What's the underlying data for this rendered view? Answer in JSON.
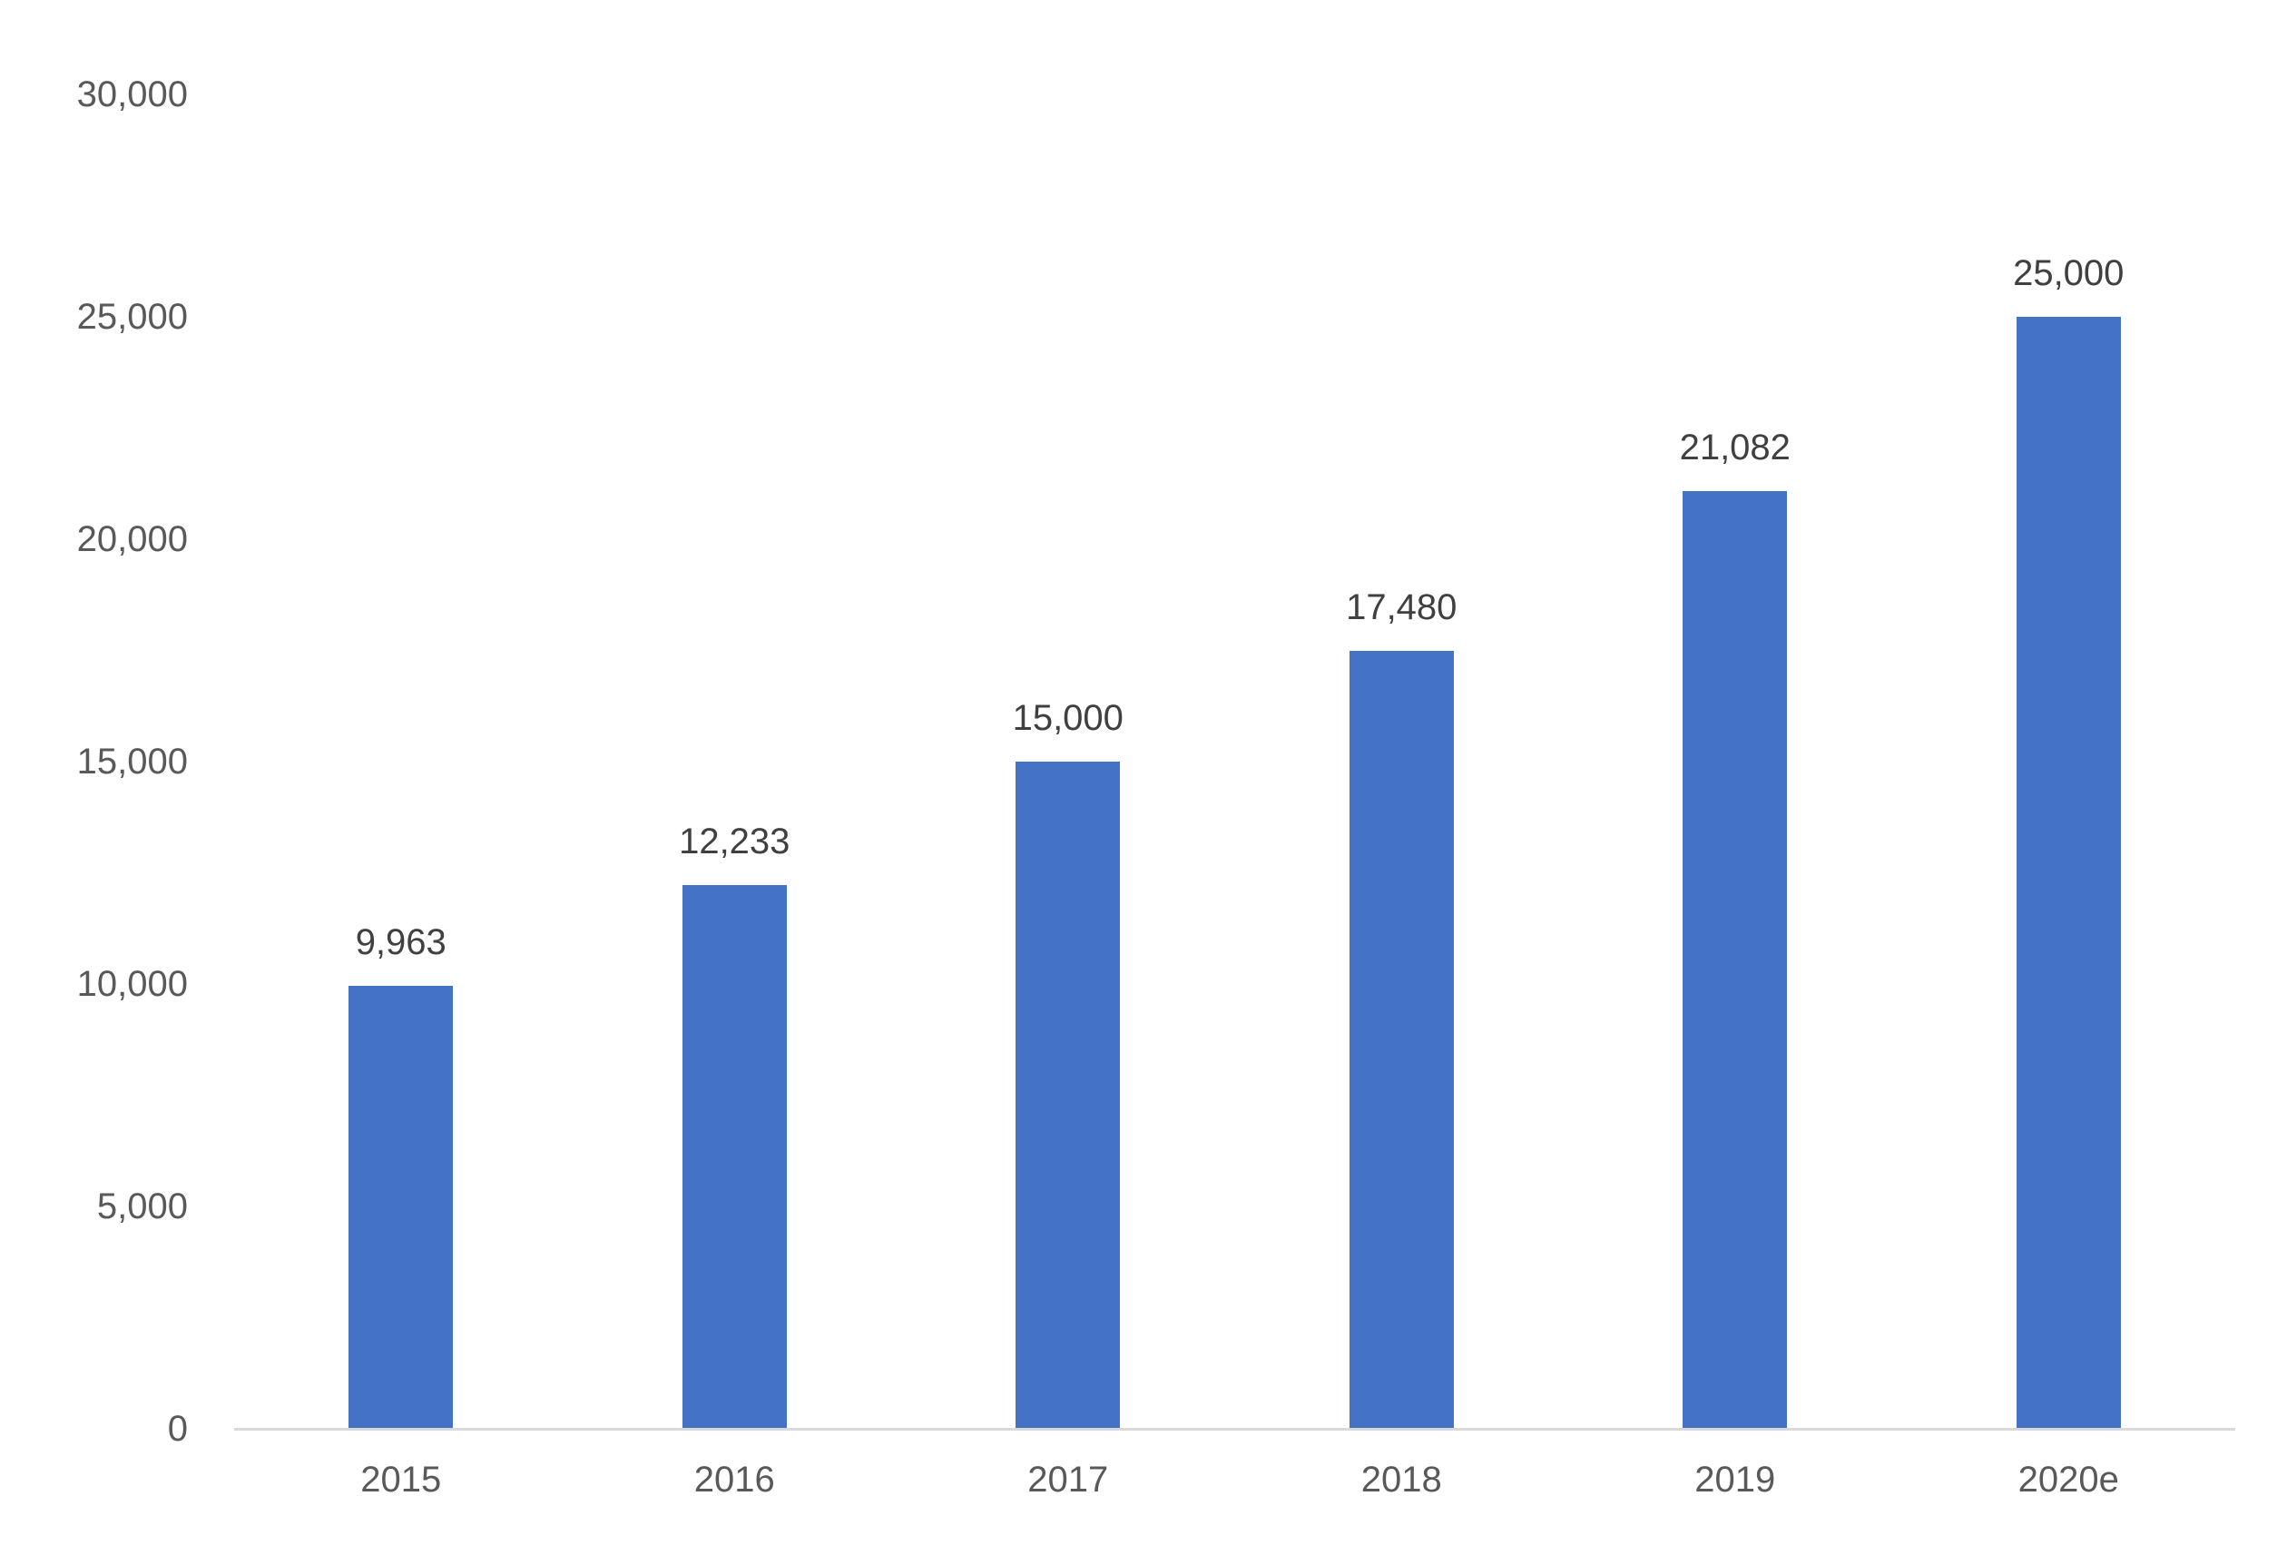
{
  "chart_data": {
    "type": "bar",
    "title": "",
    "xlabel": "",
    "ylabel": "",
    "categories": [
      "2015",
      "2016",
      "2017",
      "2018",
      "2019",
      "2020e"
    ],
    "values": [
      9963,
      12233,
      15000,
      17480,
      21082,
      25000
    ],
    "data_labels": [
      "9,963",
      "12,233",
      "15,000",
      "17,480",
      "21,082",
      "25,000"
    ],
    "yticks": [
      {
        "value": 0,
        "label": "0"
      },
      {
        "value": 5000,
        "label": "5,000"
      },
      {
        "value": 10000,
        "label": "10,000"
      },
      {
        "value": 15000,
        "label": "15,000"
      },
      {
        "value": 20000,
        "label": "20,000"
      },
      {
        "value": 25000,
        "label": "25,000"
      },
      {
        "value": 30000,
        "label": "30,000"
      }
    ],
    "ylim": [
      0,
      30000
    ],
    "grid": "off",
    "legend": "none",
    "colors": {
      "bar": "#4472C4",
      "axis_line": "#D9D9D9",
      "tick_label": "#595959",
      "data_label": "#404040",
      "background": "#FFFFFF"
    }
  }
}
